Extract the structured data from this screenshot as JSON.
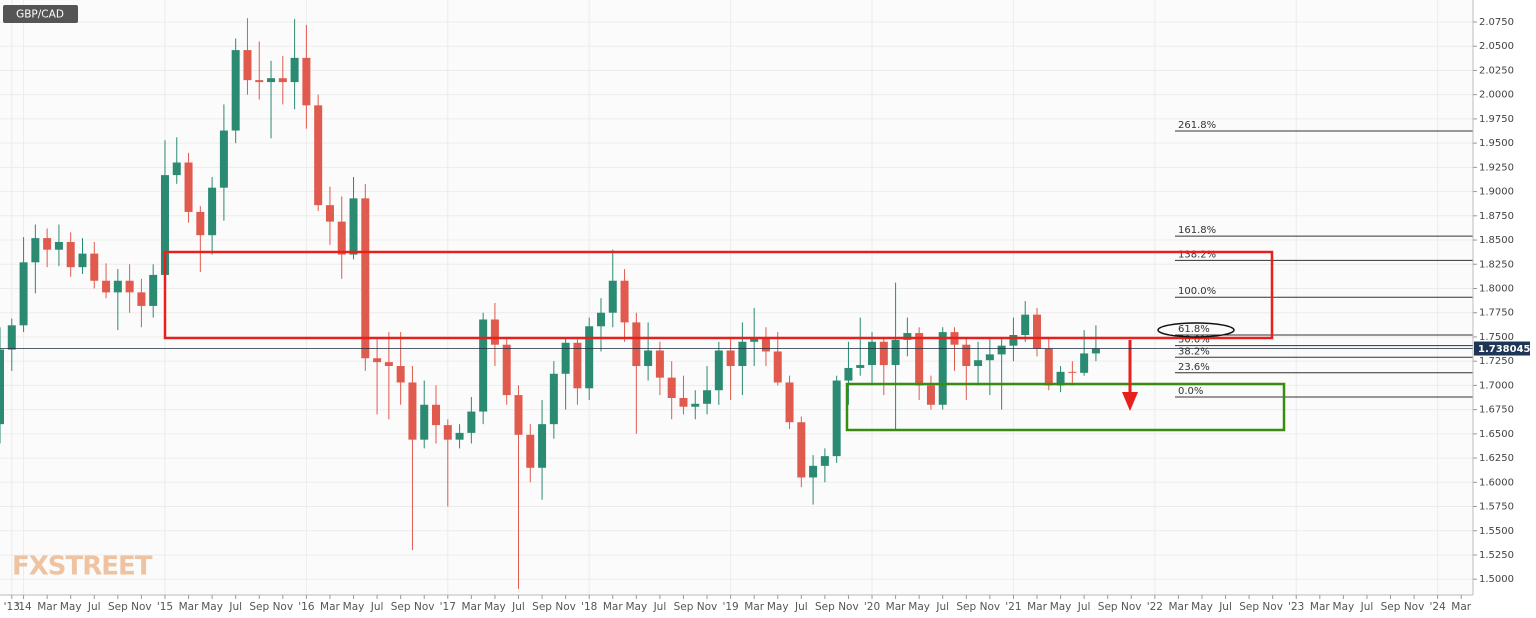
{
  "chart_data": {
    "type": "candlestick",
    "title": "GBP/CAD",
    "watermark": "FXSTREET",
    "x": [
      "2013-11",
      "2013-12",
      "2014-01",
      "2014-02",
      "2014-03",
      "2014-04",
      "2014-05",
      "2014-06",
      "2014-07",
      "2014-08",
      "2014-09",
      "2014-10",
      "2014-11",
      "2014-12",
      "2015-01",
      "2015-02",
      "2015-03",
      "2015-04",
      "2015-05",
      "2015-06",
      "2015-07",
      "2015-08",
      "2015-09",
      "2015-10",
      "2015-11",
      "2015-12",
      "2016-01",
      "2016-02",
      "2016-03",
      "2016-04",
      "2016-05",
      "2016-06",
      "2016-07",
      "2016-08",
      "2016-09",
      "2016-10",
      "2016-11",
      "2016-12",
      "2017-01",
      "2017-02",
      "2017-03",
      "2017-04",
      "2017-05",
      "2017-06",
      "2017-07",
      "2017-08",
      "2017-09",
      "2017-10",
      "2017-11",
      "2017-12",
      "2018-01",
      "2018-02",
      "2018-03",
      "2018-04",
      "2018-05",
      "2018-06",
      "2018-07",
      "2018-08",
      "2018-09",
      "2018-10",
      "2018-11",
      "2018-12",
      "2019-01",
      "2019-02",
      "2019-03",
      "2019-04",
      "2019-05",
      "2019-06",
      "2019-07",
      "2019-08",
      "2019-09",
      "2019-10",
      "2019-11",
      "2019-12",
      "2020-01",
      "2020-02",
      "2020-03",
      "2020-04",
      "2020-05",
      "2020-06",
      "2020-07",
      "2020-08",
      "2020-09",
      "2020-10",
      "2020-11",
      "2020-12",
      "2021-01",
      "2021-02",
      "2021-03",
      "2021-04",
      "2021-05",
      "2021-06",
      "2021-07",
      "2021-08"
    ],
    "open": [
      1.66,
      1.737,
      1.762,
      1.827,
      1.852,
      1.84,
      1.848,
      1.822,
      1.836,
      1.808,
      1.796,
      1.808,
      1.796,
      1.782,
      1.814,
      1.917,
      1.93,
      1.879,
      1.855,
      1.904,
      1.963,
      2.046,
      2.015,
      2.013,
      2.017,
      2.013,
      2.038,
      1.989,
      1.886,
      1.869,
      1.835,
      1.893,
      1.728,
      1.724,
      1.72,
      1.703,
      1.644,
      1.68,
      1.659,
      1.644,
      1.651,
      1.673,
      1.768,
      1.742,
      1.69,
      1.649,
      1.615,
      1.66,
      1.712,
      1.744,
      1.697,
      1.761,
      1.775,
      1.808,
      1.765,
      1.72,
      1.736,
      1.708,
      1.687,
      1.678,
      1.681,
      1.695,
      1.736,
      1.72,
      1.745,
      1.748,
      1.735,
      1.703,
      1.662,
      1.605,
      1.617,
      1.627,
      1.705,
      1.718,
      1.721,
      1.745,
      1.721,
      1.747,
      1.754,
      1.7,
      1.68,
      1.755,
      1.742,
      1.72,
      1.726,
      1.732,
      1.741,
      1.752,
      1.773,
      1.738,
      1.7,
      1.714,
      1.713,
      1.733
    ],
    "high": [
      1.76,
      1.769,
      1.853,
      1.866,
      1.862,
      1.866,
      1.858,
      1.852,
      1.848,
      1.826,
      1.82,
      1.825,
      1.81,
      1.825,
      1.953,
      1.956,
      1.94,
      1.885,
      1.915,
      1.99,
      2.058,
      2.079,
      2.055,
      2.035,
      2.04,
      2.078,
      2.072,
      2.0,
      1.905,
      1.895,
      1.915,
      1.908,
      1.75,
      1.755,
      1.755,
      1.72,
      1.705,
      1.7,
      1.665,
      1.66,
      1.688,
      1.775,
      1.785,
      1.75,
      1.7,
      1.66,
      1.685,
      1.725,
      1.75,
      1.75,
      1.77,
      1.79,
      1.84,
      1.82,
      1.775,
      1.765,
      1.745,
      1.725,
      1.71,
      1.695,
      1.72,
      1.745,
      1.75,
      1.765,
      1.78,
      1.76,
      1.755,
      1.71,
      1.668,
      1.628,
      1.635,
      1.71,
      1.745,
      1.77,
      1.755,
      1.75,
      1.806,
      1.77,
      1.76,
      1.71,
      1.76,
      1.76,
      1.75,
      1.745,
      1.75,
      1.75,
      1.77,
      1.787,
      1.78,
      1.75,
      1.72,
      1.725,
      1.757,
      1.762
    ],
    "low": [
      1.64,
      1.715,
      1.755,
      1.795,
      1.822,
      1.823,
      1.812,
      1.815,
      1.8,
      1.79,
      1.757,
      1.775,
      1.76,
      1.77,
      1.8,
      1.908,
      1.868,
      1.817,
      1.835,
      1.87,
      1.95,
      2.0,
      1.995,
      1.955,
      1.99,
      1.985,
      1.965,
      1.88,
      1.845,
      1.81,
      1.83,
      1.715,
      1.67,
      1.665,
      1.68,
      1.53,
      1.635,
      1.64,
      1.575,
      1.635,
      1.64,
      1.66,
      1.72,
      1.68,
      1.49,
      1.6,
      1.582,
      1.645,
      1.675,
      1.68,
      1.685,
      1.735,
      1.76,
      1.745,
      1.65,
      1.705,
      1.69,
      1.665,
      1.67,
      1.665,
      1.67,
      1.68,
      1.685,
      1.69,
      1.72,
      1.72,
      1.7,
      1.655,
      1.595,
      1.577,
      1.6,
      1.62,
      1.68,
      1.71,
      1.7,
      1.69,
      1.655,
      1.73,
      1.685,
      1.675,
      1.675,
      1.715,
      1.685,
      1.7,
      1.69,
      1.675,
      1.725,
      1.745,
      1.73,
      1.695,
      1.693,
      1.7,
      1.71,
      1.725
    ],
    "close": [
      1.737,
      1.762,
      1.827,
      1.852,
      1.84,
      1.848,
      1.822,
      1.836,
      1.808,
      1.796,
      1.808,
      1.796,
      1.782,
      1.814,
      1.917,
      1.93,
      1.879,
      1.855,
      1.904,
      1.963,
      2.046,
      2.015,
      2.013,
      2.017,
      2.013,
      2.038,
      1.989,
      1.886,
      1.869,
      1.835,
      1.893,
      1.728,
      1.724,
      1.72,
      1.703,
      1.644,
      1.68,
      1.659,
      1.644,
      1.651,
      1.673,
      1.768,
      1.742,
      1.69,
      1.649,
      1.615,
      1.66,
      1.712,
      1.744,
      1.697,
      1.761,
      1.775,
      1.808,
      1.765,
      1.72,
      1.736,
      1.708,
      1.687,
      1.678,
      1.681,
      1.695,
      1.736,
      1.72,
      1.745,
      1.748,
      1.735,
      1.703,
      1.662,
      1.605,
      1.617,
      1.627,
      1.705,
      1.718,
      1.721,
      1.745,
      1.721,
      1.747,
      1.754,
      1.7,
      1.68,
      1.755,
      1.742,
      1.72,
      1.726,
      1.732,
      1.741,
      1.752,
      1.773,
      1.738,
      1.7,
      1.714,
      1.713,
      1.733,
      1.738
    ],
    "up_color": "#2a8a72",
    "down_color": "#e05a4d",
    "last_price": 1.738045,
    "fibonacci": [
      {
        "level": "261.8%",
        "price": 1.9625
      },
      {
        "level": "161.8%",
        "price": 1.854
      },
      {
        "level": "138.2%",
        "price": 1.829
      },
      {
        "level": "100.0%",
        "price": 1.791
      },
      {
        "level": "61.8%",
        "price": 1.752
      },
      {
        "level": "50.0%",
        "price": 1.741
      },
      {
        "level": "38.2%",
        "price": 1.729
      },
      {
        "level": "23.6%",
        "price": 1.713
      },
      {
        "level": "0.0%",
        "price": 1.688
      }
    ],
    "xlim": [
      "2013-11",
      "2024-04"
    ],
    "ylim": [
      1.4837,
      2.0977
    ],
    "grid": true,
    "yticks": [
      {
        "value": 1.5,
        "label": "1.5000"
      },
      {
        "value": 1.525,
        "label": "1.5250"
      },
      {
        "value": 1.55,
        "label": "1.5500"
      },
      {
        "value": 1.575,
        "label": "1.5750"
      },
      {
        "value": 1.6,
        "label": "1.6000"
      },
      {
        "value": 1.625,
        "label": "1.6250"
      },
      {
        "value": 1.65,
        "label": "1.6500"
      },
      {
        "value": 1.675,
        "label": "1.6750"
      },
      {
        "value": 1.7,
        "label": "1.7000"
      },
      {
        "value": 1.725,
        "label": "1.7250"
      },
      {
        "value": 1.75,
        "label": "1.7500"
      },
      {
        "value": 1.775,
        "label": "1.7750"
      },
      {
        "value": 1.8,
        "label": "1.8000"
      },
      {
        "value": 1.825,
        "label": "1.8250"
      },
      {
        "value": 1.85,
        "label": "1.8500"
      },
      {
        "value": 1.875,
        "label": "1.8750"
      },
      {
        "value": 1.9,
        "label": "1.9000"
      },
      {
        "value": 1.925,
        "label": "1.9250"
      },
      {
        "value": 1.95,
        "label": "1.9500"
      },
      {
        "value": 1.975,
        "label": "1.9750"
      },
      {
        "value": 2.0,
        "label": "2.0000"
      },
      {
        "value": 2.025,
        "label": "2.0250"
      },
      {
        "value": 2.05,
        "label": "2.0500"
      },
      {
        "value": 2.075,
        "label": "2.0750"
      }
    ],
    "xticks": [
      {
        "value": "2013-12",
        "label": "'13"
      },
      {
        "value": "2014-01",
        "label": "'14"
      },
      {
        "value": "2014-03",
        "label": "Mar"
      },
      {
        "value": "2014-05",
        "label": "May"
      },
      {
        "value": "2014-07",
        "label": "Jul"
      },
      {
        "value": "2014-09",
        "label": "Sep"
      },
      {
        "value": "2014-11",
        "label": "Nov"
      },
      {
        "value": "2015-01",
        "label": "'15"
      },
      {
        "value": "2015-03",
        "label": "Mar"
      },
      {
        "value": "2015-05",
        "label": "May"
      },
      {
        "value": "2015-07",
        "label": "Jul"
      },
      {
        "value": "2015-09",
        "label": "Sep"
      },
      {
        "value": "2015-11",
        "label": "Nov"
      },
      {
        "value": "2016-01",
        "label": "'16"
      },
      {
        "value": "2016-03",
        "label": "Mar"
      },
      {
        "value": "2016-05",
        "label": "May"
      },
      {
        "value": "2016-07",
        "label": "Jul"
      },
      {
        "value": "2016-09",
        "label": "Sep"
      },
      {
        "value": "2016-11",
        "label": "Nov"
      },
      {
        "value": "2017-01",
        "label": "'17"
      },
      {
        "value": "2017-03",
        "label": "Mar"
      },
      {
        "value": "2017-05",
        "label": "May"
      },
      {
        "value": "2017-07",
        "label": "Jul"
      },
      {
        "value": "2017-09",
        "label": "Sep"
      },
      {
        "value": "2017-11",
        "label": "Nov"
      },
      {
        "value": "2018-01",
        "label": "'18"
      },
      {
        "value": "2018-03",
        "label": "Mar"
      },
      {
        "value": "2018-05",
        "label": "May"
      },
      {
        "value": "2018-07",
        "label": "Jul"
      },
      {
        "value": "2018-09",
        "label": "Sep"
      },
      {
        "value": "2018-11",
        "label": "Nov"
      },
      {
        "value": "2019-01",
        "label": "'19"
      },
      {
        "value": "2019-03",
        "label": "Mar"
      },
      {
        "value": "2019-05",
        "label": "May"
      },
      {
        "value": "2019-07",
        "label": "Jul"
      },
      {
        "value": "2019-09",
        "label": "Sep"
      },
      {
        "value": "2019-11",
        "label": "Nov"
      },
      {
        "value": "2020-01",
        "label": "'20"
      },
      {
        "value": "2020-03",
        "label": "Mar"
      },
      {
        "value": "2020-05",
        "label": "May"
      },
      {
        "value": "2020-07",
        "label": "Jul"
      },
      {
        "value": "2020-09",
        "label": "Sep"
      },
      {
        "value": "2020-11",
        "label": "Nov"
      },
      {
        "value": "2021-01",
        "label": "'21"
      },
      {
        "value": "2021-03",
        "label": "Mar"
      },
      {
        "value": "2021-05",
        "label": "May"
      },
      {
        "value": "2021-07",
        "label": "Jul"
      },
      {
        "value": "2021-09",
        "label": "Sep"
      },
      {
        "value": "2021-11",
        "label": "Nov"
      },
      {
        "value": "2022-01",
        "label": "'22"
      },
      {
        "value": "2022-03",
        "label": "Mar"
      },
      {
        "value": "2022-05",
        "label": "May"
      },
      {
        "value": "2022-07",
        "label": "Jul"
      },
      {
        "value": "2022-09",
        "label": "Sep"
      },
      {
        "value": "2022-11",
        "label": "Nov"
      },
      {
        "value": "2023-01",
        "label": "'23"
      },
      {
        "value": "2023-03",
        "label": "Mar"
      },
      {
        "value": "2023-05",
        "label": "May"
      },
      {
        "value": "2023-07",
        "label": "Jul"
      },
      {
        "value": "2023-09",
        "label": "Sep"
      },
      {
        "value": "2023-11",
        "label": "Nov"
      },
      {
        "value": "2024-01",
        "label": "'24"
      },
      {
        "value": "2024-03",
        "label": "Mar"
      }
    ]
  }
}
